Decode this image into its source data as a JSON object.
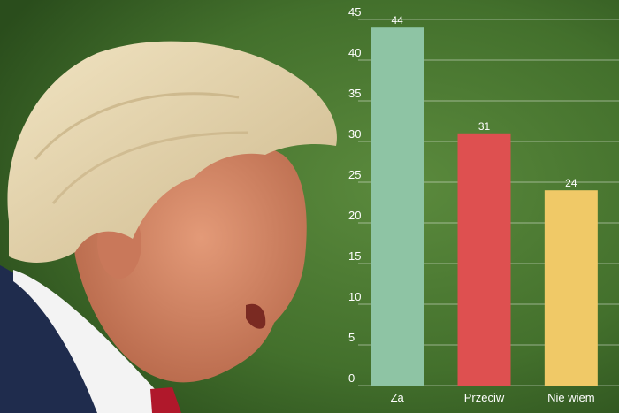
{
  "background": {
    "description_icon": "portrait-photo",
    "colors": {
      "grass": "#4a7a32",
      "grass_dark": "#2e5220",
      "suit": "#1f2c4d",
      "tie": "#b0182b",
      "skin": "#d98c6a",
      "hair": "#e6d6b0"
    }
  },
  "chart_data": {
    "type": "bar",
    "categories": [
      "Za",
      "Przeciw",
      "Nie wiem"
    ],
    "values": [
      44,
      31,
      24
    ],
    "colors": [
      "#8ec4a4",
      "#de5050",
      "#f0c967"
    ],
    "ylim": [
      0,
      45
    ],
    "yticks": [
      0,
      5,
      10,
      15,
      20,
      25,
      30,
      35,
      40,
      45
    ],
    "title": "",
    "xlabel": "",
    "ylabel": "",
    "grid": true,
    "legend": "none"
  }
}
